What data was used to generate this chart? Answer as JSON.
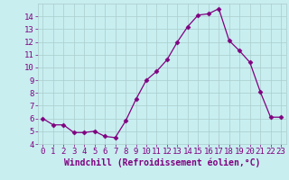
{
  "x": [
    0,
    1,
    2,
    3,
    4,
    5,
    6,
    7,
    8,
    9,
    10,
    11,
    12,
    13,
    14,
    15,
    16,
    17,
    18,
    19,
    20,
    21,
    22,
    23
  ],
  "y": [
    6.0,
    5.5,
    5.5,
    4.9,
    4.9,
    5.0,
    4.6,
    4.5,
    5.8,
    7.5,
    9.0,
    9.7,
    10.6,
    12.0,
    13.2,
    14.1,
    14.2,
    14.6,
    12.1,
    11.3,
    10.4,
    8.1,
    6.1,
    6.1
  ],
  "line_color": "#800080",
  "marker": "D",
  "marker_size": 2.5,
  "bg_color": "#c8eef0",
  "grid_color": "#aacccc",
  "xlabel": "Windchill (Refroidissement éolien,°C)",
  "xlabel_color": "#800080",
  "xlabel_fontsize": 7,
  "tick_color": "#800080",
  "tick_fontsize": 6.5,
  "ylim": [
    4,
    15
  ],
  "xlim": [
    -0.5,
    23.5
  ],
  "yticks": [
    4,
    5,
    6,
    7,
    8,
    9,
    10,
    11,
    12,
    13,
    14
  ],
  "xticks": [
    0,
    1,
    2,
    3,
    4,
    5,
    6,
    7,
    8,
    9,
    10,
    11,
    12,
    13,
    14,
    15,
    16,
    17,
    18,
    19,
    20,
    21,
    22,
    23
  ]
}
